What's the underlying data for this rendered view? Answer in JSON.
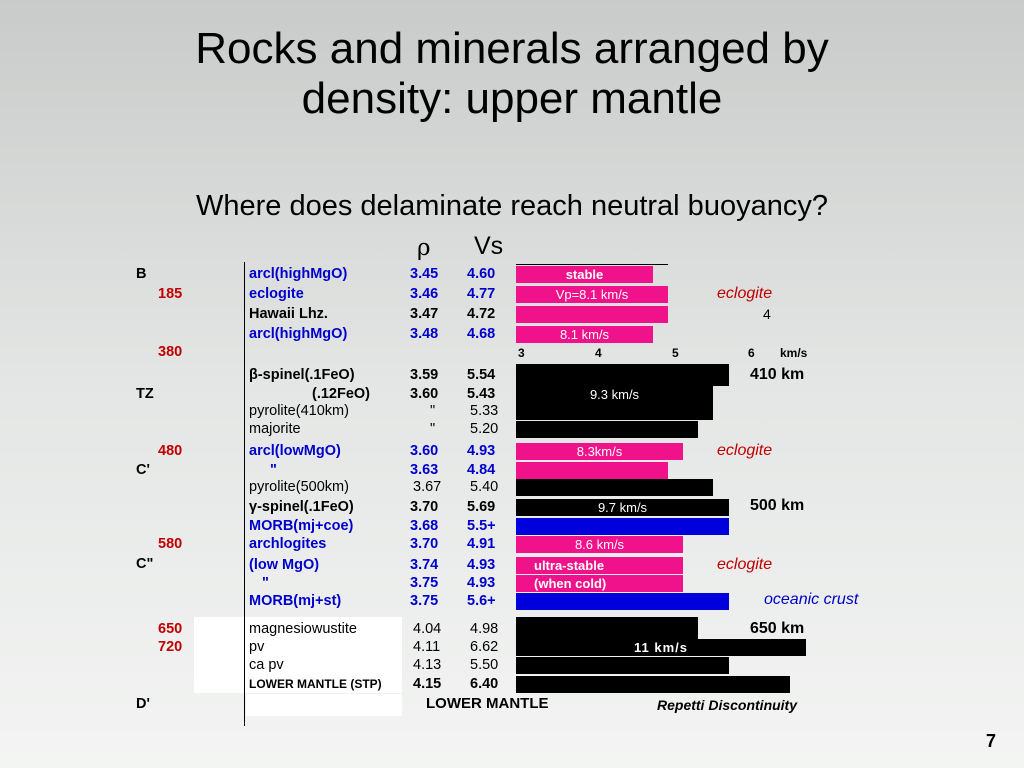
{
  "title_line1": "Rocks and minerals arranged by",
  "title_line2": "density: upper mantle",
  "subtitle": "Where does delaminate reach neutral buoyancy?",
  "col_rho": "ρ",
  "col_vs": "Vs",
  "zones": {
    "B": "B",
    "TZ": "TZ",
    "Cp": "C'",
    "Cpp": "C\"",
    "Dp": "D'"
  },
  "depths": {
    "d185": "185",
    "d380": "380",
    "d480": "480",
    "d580": "580",
    "d650": "650",
    "d720": "720"
  },
  "rows": [
    {
      "name": "arcl(highMgO)",
      "rho": "3.45",
      "vs": "4.60",
      "bar_label": "stable"
    },
    {
      "name": "eclogite",
      "rho": "3.46",
      "vs": "4.77",
      "bar_label": "Vp=8.1 km/s"
    },
    {
      "name": "Hawaii Lhz.",
      "rho": "3.47",
      "vs": "4.72",
      "bar_label": ""
    },
    {
      "name": "arcl(highMgO)",
      "rho": "3.48",
      "vs": "4.68",
      "bar_label": "8.1 km/s"
    },
    {
      "name": "β-spinel(.1FeO)",
      "rho": "3.59",
      "vs": "5.54",
      "bar_label": ""
    },
    {
      "name": "(.12FeO)",
      "rho": "3.60",
      "vs": "5.43",
      "bar_label": "9.3 km/s"
    },
    {
      "name": "pyrolite(410km)",
      "rho": "\"",
      "vs": "5.33",
      "bar_label": ""
    },
    {
      "name": "majorite",
      "rho": "\"",
      "vs": "5.20",
      "bar_label": ""
    },
    {
      "name": "arcl(lowMgO)",
      "rho": "3.60",
      "vs": "4.93",
      "bar_label": "8.3km/s"
    },
    {
      "name": "\"",
      "rho": "3.63",
      "vs": "4.84",
      "bar_label": ""
    },
    {
      "name": "pyrolite(500km)",
      "rho": "3.67",
      "vs": "5.40",
      "bar_label": ""
    },
    {
      "name": "γ-spinel(.1FeO)",
      "rho": "3.70",
      "vs": "5.69",
      "bar_label": "9.7 km/s"
    },
    {
      "name": "MORB(mj+coe)",
      "rho": "3.68",
      "vs": "5.5+",
      "bar_label": ""
    },
    {
      "name": "archlogites",
      "rho": "3.70",
      "vs": "4.91",
      "bar_label": "8.6 km/s"
    },
    {
      "name": "(low MgO)",
      "rho": "3.74",
      "vs": "4.93",
      "bar_label": "ultra-stable"
    },
    {
      "name": "\"",
      "rho": "3.75",
      "vs": "4.93",
      "bar_label": "(when cold)"
    },
    {
      "name": "MORB(mj+st)",
      "rho": "3.75",
      "vs": "5.6+",
      "bar_label": ""
    },
    {
      "name": "magnesiowustite",
      "rho": "4.04",
      "vs": "4.98",
      "bar_label": ""
    },
    {
      "name": "pv",
      "rho": "4.11",
      "vs": "6.62",
      "bar_label": "11 km/s"
    },
    {
      "name": "ca pv",
      "rho": "4.13",
      "vs": "5.50",
      "bar_label": ""
    },
    {
      "name": "LOWER MANTLE (STP)",
      "rho": "4.15",
      "vs": "6.40",
      "bar_label": ""
    }
  ],
  "scale": {
    "t3": "3",
    "t4": "4",
    "t5": "5",
    "t6": "6",
    "unit": "km/s"
  },
  "right_labels": {
    "eclogite1": "eclogite",
    "four": "4",
    "km410": "410 km",
    "eclogite2": "eclogite",
    "km500": "500 km",
    "eclogite3": "eclogite",
    "oceanic": "oceanic crust",
    "km650": "650 km"
  },
  "bottom": {
    "lower_mantle": "LOWER MANTLE",
    "repetti": "Repetti Discontinuity"
  },
  "page_number": "7",
  "colors": {
    "pink": "#f0128a",
    "blue": "#0000cc",
    "red": "#c00000",
    "black": "#000000"
  }
}
